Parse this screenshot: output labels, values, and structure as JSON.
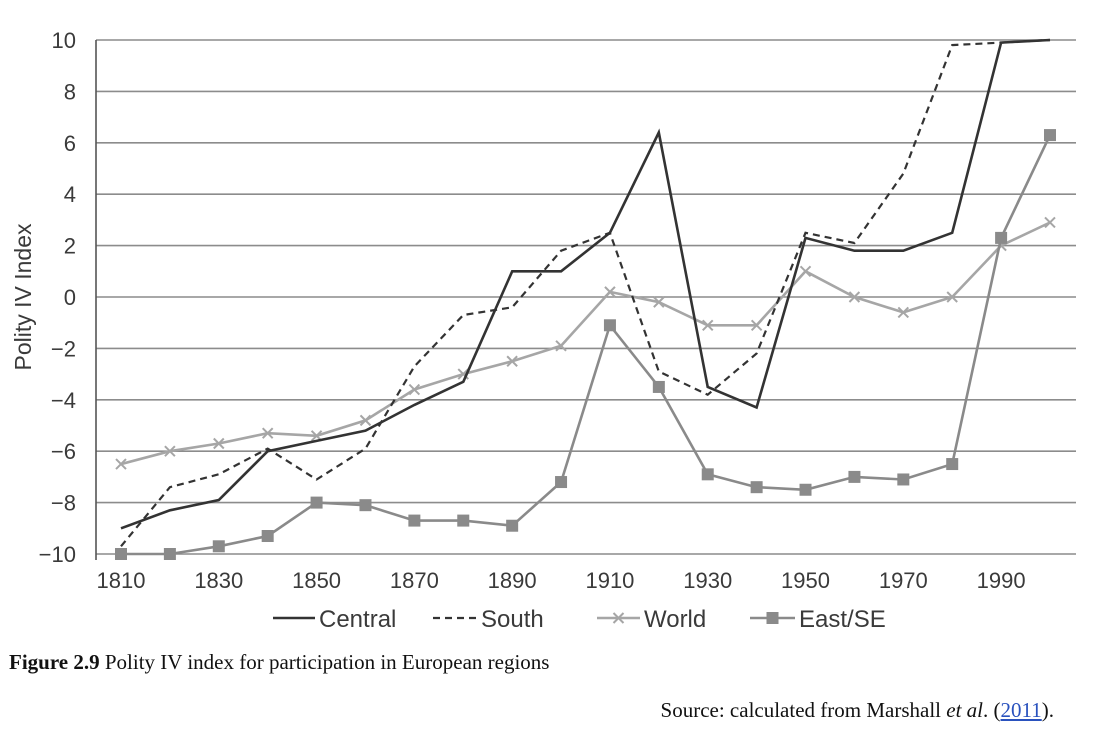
{
  "chart_data": {
    "type": "line",
    "ylabel": "Polity IV Index",
    "xlabel": "",
    "ylim": [
      -10,
      10
    ],
    "xlim": [
      1810,
      2000
    ],
    "yticks": [
      10,
      8,
      6,
      4,
      2,
      0,
      -2,
      -4,
      -6,
      -8,
      -10
    ],
    "ytick_labels": [
      "10",
      "8",
      "6",
      "4",
      "2",
      "0",
      "−2",
      "−4",
      "−6",
      "−8",
      "−10"
    ],
    "xticks": [
      1810,
      1830,
      1850,
      1870,
      1890,
      1910,
      1930,
      1950,
      1970,
      1990
    ],
    "xtick_labels": [
      "1810",
      "1830",
      "1850",
      "1870",
      "1890",
      "1910",
      "1930",
      "1950",
      "1970",
      "1990"
    ],
    "grid": "horizontal",
    "legend_position": "bottom",
    "x": [
      1810,
      1820,
      1830,
      1840,
      1850,
      1860,
      1870,
      1880,
      1890,
      1900,
      1910,
      1920,
      1930,
      1940,
      1950,
      1960,
      1970,
      1980,
      1990,
      2000
    ],
    "series": [
      {
        "name": "Central",
        "style": "solid",
        "color": "#333333",
        "marker": "none",
        "values": [
          -9.0,
          -8.3,
          -7.9,
          -6.0,
          -5.6,
          -5.2,
          -4.2,
          -3.3,
          1.0,
          1.0,
          2.5,
          6.4,
          -3.5,
          -4.3,
          2.3,
          1.8,
          1.8,
          2.5,
          9.9,
          10.0
        ]
      },
      {
        "name": "South",
        "style": "dashed",
        "color": "#333333",
        "marker": "none",
        "values": [
          -9.7,
          -7.4,
          -6.9,
          -5.9,
          -7.1,
          -5.9,
          -2.7,
          -0.7,
          -0.4,
          1.8,
          2.5,
          -2.9,
          -3.8,
          -2.2,
          2.5,
          2.1,
          4.8,
          9.8,
          9.9,
          10.0
        ]
      },
      {
        "name": "World",
        "style": "solid",
        "color": "#a6a6a6",
        "marker": "x",
        "values": [
          -6.5,
          -6.0,
          -5.7,
          -5.3,
          -5.4,
          -4.8,
          -3.6,
          -3.0,
          -2.5,
          -1.9,
          0.2,
          -0.2,
          -1.1,
          -1.1,
          1.0,
          0.0,
          -0.6,
          0.0,
          2.0,
          2.9
        ]
      },
      {
        "name": "East/SE",
        "style": "solid",
        "color": "#8a8a8a",
        "marker": "square",
        "values": [
          -10.0,
          -10.0,
          -9.7,
          -9.3,
          -8.0,
          -8.1,
          -8.7,
          -8.7,
          -8.9,
          -7.2,
          -1.1,
          -3.5,
          -6.9,
          -7.4,
          -7.5,
          -7.0,
          -7.1,
          -6.5,
          2.3,
          6.3
        ]
      }
    ]
  },
  "caption": {
    "label": "Figure 2.9",
    "text": "Polity IV index for participation in European regions"
  },
  "source": {
    "prefix": "Source: calculated from Marshall ",
    "etal": "et al",
    "dot": ". (",
    "year": "2011",
    "suffix": ")."
  }
}
